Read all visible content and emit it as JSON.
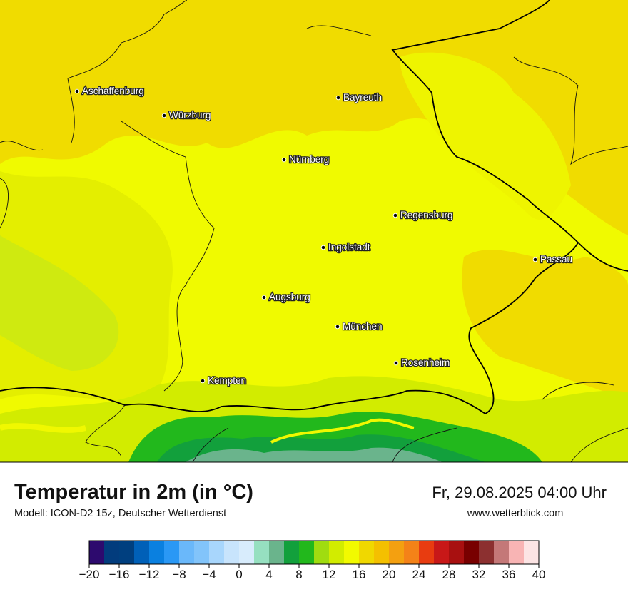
{
  "map": {
    "cities": [
      "Aschaffenburg",
      "Würzburg",
      "Bayreuth",
      "Nürnberg",
      "Regensburg",
      "Ingolstadt",
      "Passau",
      "Augsburg",
      "München",
      "Rosenheim",
      "Kempten"
    ]
  },
  "footer": {
    "title": "Temperatur in 2m (in °C)",
    "subtitle": "Modell: ICON-D2 15z, Deutscher Wetterdienst",
    "datetime": "Fr, 29.08.2025 04:00 Uhr",
    "website": "www.wetterblick.com"
  },
  "colorbar": {
    "bounds": [
      -20,
      -18,
      -16,
      -14,
      -12,
      -10,
      -8,
      -6,
      -4,
      -2,
      0,
      2,
      4,
      6,
      8,
      10,
      12,
      14,
      16,
      18,
      20,
      22,
      24,
      26,
      28,
      30,
      32,
      34,
      36,
      38,
      40
    ],
    "colors": [
      "#2d0a6e",
      "#023c7d",
      "#003f7f",
      "#0060b8",
      "#0a80e0",
      "#2a98f5",
      "#6ab8fa",
      "#82c4fa",
      "#a8d6fc",
      "#c8e4fc",
      "#d8ecfc",
      "#96e0c0",
      "#6ab48c",
      "#12a03c",
      "#22b81c",
      "#a0dc10",
      "#d2ec00",
      "#f2fa00",
      "#f0d800",
      "#f4c000",
      "#f4a010",
      "#f48218",
      "#e83c10",
      "#c81818",
      "#a81010",
      "#780000",
      "#8c3030",
      "#c47878",
      "#f8b4b4",
      "#fce4e4"
    ],
    "ticks": [
      {
        "value": -20,
        "label": "−20"
      },
      {
        "value": -16,
        "label": "−16"
      },
      {
        "value": -12,
        "label": "−12"
      },
      {
        "value": -8,
        "label": "−8"
      },
      {
        "value": -4,
        "label": "−4"
      },
      0,
      4,
      8,
      12,
      16,
      20,
      24,
      28,
      32,
      36,
      40
    ]
  }
}
